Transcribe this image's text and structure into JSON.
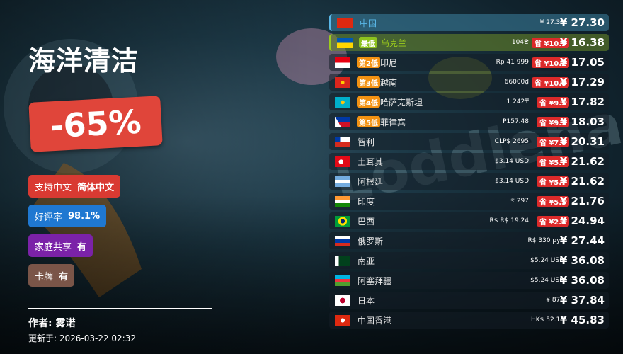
{
  "game": {
    "title": "海洋清洁",
    "discount": "-65%"
  },
  "tags": [
    {
      "label": "支持中文",
      "value": "简体中文",
      "color": "#d93a32"
    },
    {
      "label": "好评率",
      "value": "98.1%",
      "color": "#1f78d1"
    },
    {
      "label": "家庭共享",
      "value": "有",
      "color": "#7b22a8"
    },
    {
      "label": "卡牌",
      "value": "有",
      "color": "#7a5548"
    }
  ],
  "footer": {
    "author": "作者: 雾渃",
    "updated": "更新于: 2026-03-22 02:32"
  },
  "prices": [
    {
      "country": "中国",
      "flag": "cn",
      "badge": "",
      "local": "¥ 27.30",
      "save": "",
      "price": "¥ 27.30"
    },
    {
      "country": "乌克兰",
      "flag": "ua",
      "badge": "最低",
      "local": "104₴",
      "save": "省 ¥10.9",
      "price": "¥ 16.38"
    },
    {
      "country": "印尼",
      "flag": "id",
      "badge": "第2低",
      "local": "Rp 41 999",
      "save": "省 ¥10.2",
      "price": "¥ 17.05"
    },
    {
      "country": "越南",
      "flag": "vn",
      "badge": "第3低",
      "local": "66000₫",
      "save": "省 ¥10.0",
      "price": "¥ 17.29"
    },
    {
      "country": "哈萨克斯坦",
      "flag": "kz",
      "badge": "第4低",
      "local": "1 242₸",
      "save": "省 ¥9.5",
      "price": "¥ 17.82"
    },
    {
      "country": "菲律宾",
      "flag": "ph",
      "badge": "第5低",
      "local": "P157.48",
      "save": "省 ¥9.3",
      "price": "¥ 18.03"
    },
    {
      "country": "智利",
      "flag": "cl",
      "badge": "",
      "local": "CLP$ 2695",
      "save": "省 ¥7.0",
      "price": "¥ 20.31"
    },
    {
      "country": "土耳其",
      "flag": "tr",
      "badge": "",
      "local": "$3.14 USD",
      "save": "省 ¥5.7",
      "price": "¥ 21.62"
    },
    {
      "country": "阿根廷",
      "flag": "ar",
      "badge": "",
      "local": "$3.14 USD",
      "save": "省 ¥5.7",
      "price": "¥ 21.62"
    },
    {
      "country": "印度",
      "flag": "in",
      "badge": "",
      "local": "₹ 297",
      "save": "省 ¥5.5",
      "price": "¥ 21.76"
    },
    {
      "country": "巴西",
      "flag": "br",
      "badge": "",
      "local": "R$ R$ 19.24",
      "save": "省 ¥2.4",
      "price": "¥ 24.94"
    },
    {
      "country": "俄罗斯",
      "flag": "ru",
      "badge": "",
      "local": "R$ 330 руб",
      "save": "",
      "price": "¥ 27.44"
    },
    {
      "country": "南亚",
      "flag": "pk",
      "badge": "",
      "local": "$5.24 USD",
      "save": "",
      "price": "¥ 36.08"
    },
    {
      "country": "阿塞拜疆",
      "flag": "az",
      "badge": "",
      "local": "$5.24 USD",
      "save": "",
      "price": "¥ 36.08"
    },
    {
      "country": "日本",
      "flag": "jp",
      "badge": "",
      "local": "¥ 875",
      "save": "",
      "price": "¥ 37.84"
    },
    {
      "country": "中国香港",
      "flag": "hk",
      "badge": "",
      "local": "HK$ 52.15",
      "save": "",
      "price": "¥ 45.83"
    }
  ],
  "colors": {
    "accent_red": "#dd2a2a",
    "badge_orange": "#f39212",
    "lowest_green": "#8dc21f",
    "china_blue": "#5ab8e8"
  }
}
